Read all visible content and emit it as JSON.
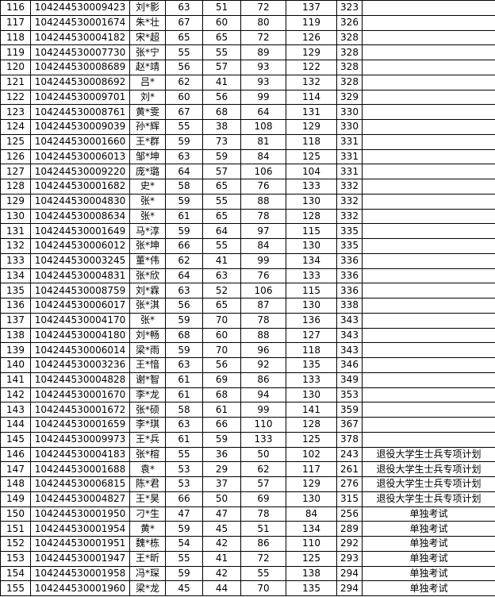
{
  "rows": [
    [
      "116",
      "104244530009423",
      "刘*影",
      "63",
      "51",
      "72",
      "137",
      "323",
      ""
    ],
    [
      "117",
      "104244530001674",
      "朱*壮",
      "67",
      "60",
      "80",
      "119",
      "326",
      ""
    ],
    [
      "118",
      "104244530004182",
      "宋*超",
      "65",
      "65",
      "72",
      "126",
      "328",
      ""
    ],
    [
      "119",
      "104244530007730",
      "张*宁",
      "55",
      "55",
      "89",
      "129",
      "328",
      ""
    ],
    [
      "120",
      "104244530008689",
      "赵*靖",
      "56",
      "57",
      "93",
      "122",
      "328",
      ""
    ],
    [
      "121",
      "104244530008692",
      "吕*",
      "62",
      "41",
      "93",
      "132",
      "328",
      ""
    ],
    [
      "122",
      "104244530009701",
      "刘*",
      "60",
      "56",
      "99",
      "114",
      "329",
      ""
    ],
    [
      "123",
      "104244530008761",
      "黄*雯",
      "67",
      "68",
      "64",
      "131",
      "330",
      ""
    ],
    [
      "124",
      "104244530009039",
      "孙*辉",
      "55",
      "38",
      "108",
      "129",
      "330",
      ""
    ],
    [
      "125",
      "104244530001660",
      "王*群",
      "59",
      "73",
      "81",
      "118",
      "331",
      ""
    ],
    [
      "126",
      "104244530006013",
      "邹*坤",
      "63",
      "59",
      "84",
      "125",
      "331",
      ""
    ],
    [
      "127",
      "104244530009220",
      "庞*璐",
      "64",
      "57",
      "106",
      "104",
      "331",
      ""
    ],
    [
      "128",
      "104244530001682",
      "史*",
      "58",
      "65",
      "76",
      "133",
      "332",
      ""
    ],
    [
      "129",
      "104244530004830",
      "张*",
      "59",
      "55",
      "88",
      "130",
      "332",
      ""
    ],
    [
      "130",
      "104244530008634",
      "张*",
      "61",
      "65",
      "78",
      "128",
      "332",
      ""
    ],
    [
      "131",
      "104244530001649",
      "马*淳",
      "59",
      "64",
      "97",
      "115",
      "335",
      ""
    ],
    [
      "132",
      "104244530006012",
      "张*坤",
      "66",
      "55",
      "84",
      "130",
      "335",
      ""
    ],
    [
      "133",
      "104244530003245",
      "董*伟",
      "62",
      "41",
      "99",
      "134",
      "336",
      ""
    ],
    [
      "134",
      "104244530004831",
      "张*欣",
      "64",
      "63",
      "76",
      "133",
      "336",
      ""
    ],
    [
      "135",
      "104244530008759",
      "刘*霖",
      "63",
      "52",
      "106",
      "115",
      "336",
      ""
    ],
    [
      "136",
      "104244530006017",
      "张*淇",
      "56",
      "65",
      "87",
      "130",
      "338",
      ""
    ],
    [
      "137",
      "104244530004170",
      "张*",
      "59",
      "70",
      "78",
      "136",
      "343",
      ""
    ],
    [
      "138",
      "104244530004180",
      "刘*畅",
      "68",
      "60",
      "88",
      "127",
      "343",
      ""
    ],
    [
      "139",
      "104244530006014",
      "梁*雨",
      "59",
      "70",
      "96",
      "118",
      "343",
      ""
    ],
    [
      "140",
      "104244530003236",
      "王*愔",
      "63",
      "56",
      "92",
      "135",
      "346",
      ""
    ],
    [
      "141",
      "104244530004828",
      "谢*智",
      "61",
      "69",
      "86",
      "133",
      "349",
      ""
    ],
    [
      "142",
      "104244530001670",
      "李*龙",
      "61",
      "68",
      "94",
      "130",
      "353",
      ""
    ],
    [
      "143",
      "104244530001672",
      "张*硕",
      "58",
      "61",
      "99",
      "141",
      "359",
      ""
    ],
    [
      "144",
      "104244530001659",
      "李*琪",
      "63",
      "66",
      "110",
      "128",
      "367",
      ""
    ],
    [
      "145",
      "104244530009973",
      "王*兵",
      "61",
      "59",
      "133",
      "125",
      "378",
      ""
    ],
    [
      "146",
      "104244530004183",
      "张*榕",
      "55",
      "36",
      "50",
      "102",
      "243",
      "退役大学生士兵专项计划"
    ],
    [
      "147",
      "104244530001688",
      "袁*",
      "53",
      "29",
      "62",
      "117",
      "261",
      "退役大学生士兵专项计划"
    ],
    [
      "148",
      "104244530006815",
      "陈*君",
      "53",
      "37",
      "57",
      "129",
      "276",
      "退役大学生士兵专项计划"
    ],
    [
      "149",
      "104244530004827",
      "王*昊",
      "66",
      "50",
      "69",
      "130",
      "315",
      "退役大学生士兵专项计划"
    ],
    [
      "150",
      "104244530001950",
      "刁*生",
      "47",
      "47",
      "78",
      "84",
      "256",
      "单独考试"
    ],
    [
      "151",
      "104244530001954",
      "黄*",
      "59",
      "45",
      "51",
      "134",
      "289",
      "单独考试"
    ],
    [
      "152",
      "104244530001951",
      "魏*栋",
      "54",
      "42",
      "86",
      "110",
      "292",
      "单独考试"
    ],
    [
      "153",
      "104244530001947",
      "王*昕",
      "55",
      "41",
      "72",
      "125",
      "293",
      "单独考试"
    ],
    [
      "154",
      "104244530001958",
      "冯*琛",
      "59",
      "42",
      "55",
      "138",
      "294",
      "单独考试"
    ],
    [
      "155",
      "104244530001960",
      "梁*龙",
      "45",
      "44",
      "70",
      "135",
      "294",
      "单独考试"
    ]
  ]
}
